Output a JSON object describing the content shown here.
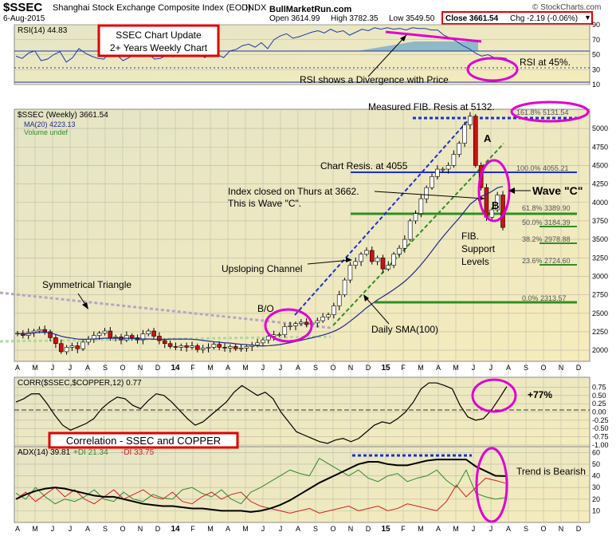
{
  "header": {
    "title": "$SSEC",
    "name": "Shanghai Stock Exchange Composite Index (EOD)",
    "exchange": "INDX",
    "watermark": "© StockCharts.com",
    "date": "6-Aug-2015",
    "site": "BullMarketRun.com",
    "open": "Open 3614.99",
    "high": "High 3782.35",
    "low": "Low 3549.50",
    "close": "Close 3661.54",
    "chg": "Chg -2.19 (-0.06%)"
  },
  "x_axis": {
    "labels": [
      "A",
      "M",
      "J",
      "J",
      "A",
      "S",
      "O",
      "N",
      "D",
      "14",
      "F",
      "M",
      "A",
      "M",
      "J",
      "J",
      "A",
      "S",
      "O",
      "N",
      "D",
      "15",
      "F",
      "M",
      "A",
      "M",
      "J",
      "J",
      "A",
      "S",
      "O",
      "N",
      "D"
    ]
  },
  "chart_data": [
    {
      "type": "line",
      "panel": "rsi",
      "legend": "RSI(14) 44.83",
      "yticks": [
        90,
        70,
        50,
        30,
        10
      ],
      "ylim": [
        10,
        90
      ],
      "levels": [
        70,
        50,
        30
      ],
      "values": [
        48,
        45,
        52,
        55,
        42,
        44,
        50,
        54,
        40,
        46,
        58,
        52,
        48,
        45,
        44,
        55,
        50,
        42,
        46,
        53,
        49,
        52,
        44,
        45,
        50,
        47,
        53,
        55,
        48,
        52,
        46,
        52,
        50,
        46,
        55,
        57,
        62,
        64,
        60,
        66,
        58,
        70,
        75,
        78,
        72,
        74,
        77,
        80,
        82,
        79,
        84,
        80,
        82,
        76,
        80,
        84,
        82,
        86,
        84,
        86,
        84,
        85,
        83,
        86,
        85,
        85,
        83,
        83,
        76,
        72,
        68,
        62,
        58,
        52,
        48,
        50,
        46,
        46,
        44.83
      ]
    },
    {
      "type": "candlestick",
      "panel": "price",
      "legend": [
        "$SSEC (Weekly) 3661.54",
        "MA(20) 4223.13",
        "Volume undef"
      ],
      "yticks": [
        5000,
        4750,
        4500,
        4250,
        4000,
        3750,
        3500,
        3250,
        3000,
        2750,
        2500,
        2250,
        2000
      ],
      "ylim": [
        1850,
        5260
      ],
      "closes": [
        2230,
        2200,
        2240,
        2260,
        2280,
        2250,
        2170,
        2090,
        1980,
        2040,
        2060,
        2020,
        2110,
        2150,
        2200,
        2230,
        2260,
        2170,
        2180,
        2140,
        2200,
        2170,
        2140,
        2220,
        2260,
        2190,
        2130,
        2090,
        2050,
        2040,
        2060,
        2040,
        2060,
        2010,
        2030,
        2040,
        2080,
        2040,
        2030,
        2050,
        2020,
        2030,
        2050,
        2070,
        2100,
        2140,
        2190,
        2210,
        2210,
        2320,
        2330,
        2360,
        2380,
        2350,
        2370,
        2400,
        2450,
        2480,
        2600,
        2750,
        2950,
        3150,
        3200,
        3300,
        3350,
        3200,
        3250,
        3100,
        3150,
        3300,
        3380,
        3500,
        3750,
        3850,
        4050,
        4200,
        4350,
        4450,
        4450,
        4500,
        4650,
        4800,
        5050,
        5166,
        4500,
        4200,
        3800,
        3900,
        4100,
        3661.54
      ]
    },
    {
      "type": "line",
      "panel": "corr",
      "legend": "CORR($SSEC,$COPPER,12) 0.77",
      "yticks": [
        0.75,
        0.5,
        0.25,
        0.0,
        -0.25,
        -0.5,
        -0.75,
        -1.0
      ],
      "ylim": [
        -1.05,
        1.05
      ],
      "values": [
        0.3,
        0.4,
        0.55,
        0.55,
        0.25,
        -0.1,
        -0.4,
        -0.55,
        -0.45,
        -0.35,
        -0.2,
        0.1,
        0.3,
        0.45,
        0.4,
        0.2,
        0.1,
        0.35,
        0.55,
        0.5,
        0.3,
        0.05,
        -0.2,
        -0.4,
        -0.3,
        -0.1,
        0.1,
        0.3,
        0.6,
        0.8,
        0.65,
        0.5,
        0.6,
        0.4,
        0.0,
        -0.3,
        -0.6,
        -0.7,
        -0.8,
        -0.9,
        -0.95,
        -0.85,
        -0.8,
        -0.9,
        -0.8,
        -0.6,
        -0.4,
        -0.3,
        -0.35,
        -0.2,
        0.0,
        0.3,
        0.7,
        0.88,
        0.88,
        0.8,
        0.7,
        0.2,
        -0.15,
        -0.25,
        -0.2,
        0.05,
        0.4,
        0.77
      ]
    },
    {
      "type": "line",
      "panel": "adx",
      "legend": [
        "ADX(14) 39.81",
        "+DI 21.34",
        "-DI 33.75"
      ],
      "yticks": [
        60,
        50,
        40,
        30,
        20,
        10
      ],
      "ylim": [
        0,
        65
      ],
      "series": [
        {
          "name": "ADX(14)",
          "color": "#000000",
          "values": [
            20,
            24,
            27,
            29,
            30,
            29,
            27,
            25,
            23,
            22,
            22,
            20,
            18,
            16,
            15,
            14,
            14,
            13,
            12,
            12,
            11,
            10,
            10,
            10,
            9,
            10,
            12,
            15,
            19,
            24,
            29,
            34,
            38,
            42,
            46,
            50,
            52,
            52,
            50,
            49,
            49,
            51,
            53,
            54,
            54,
            54,
            54,
            48,
            44,
            40,
            39.81
          ]
        },
        {
          "name": "+DI",
          "color": "#2d8a2d",
          "values": [
            25,
            20,
            30,
            22,
            16,
            20,
            18,
            22,
            28,
            20,
            18,
            26,
            20,
            18,
            24,
            21,
            20,
            28,
            30,
            25,
            22,
            28,
            20,
            16,
            26,
            30,
            35,
            40,
            45,
            42,
            40,
            55,
            50,
            45,
            40,
            45,
            38,
            35,
            40,
            42,
            35,
            38,
            40,
            45,
            36,
            30,
            45,
            25,
            22,
            20,
            21.34
          ]
        },
        {
          "name": "-DI",
          "color": "#cc2222",
          "values": [
            20,
            26,
            18,
            24,
            30,
            22,
            28,
            20,
            16,
            22,
            28,
            20,
            24,
            28,
            22,
            20,
            26,
            18,
            16,
            22,
            26,
            20,
            24,
            26,
            18,
            14,
            12,
            10,
            8,
            10,
            12,
            8,
            10,
            12,
            14,
            10,
            12,
            14,
            10,
            12,
            16,
            14,
            12,
            10,
            18,
            32,
            22,
            30,
            38,
            36,
            33.75
          ]
        }
      ]
    }
  ],
  "annotations": {
    "title_box": [
      "SSEC Chart Update",
      "2+ Years Weekly Chart"
    ],
    "rsi_divergence": "RSI shows a Divergence with Price",
    "rsi_level": "RSI at 45%.",
    "measured_fib": "Measured FIB. Resis at 5132.",
    "fib_1618": "161.8% 5131.54",
    "fib_100": "100.0% 4055.21",
    "fib_618": "61.8% 3389.90",
    "fib_50": "50.0% 3184.39",
    "fib_382": "38.2% 2978.88",
    "fib_236": "23.6% 2724.60",
    "fib_0": "0.0% 2313.57",
    "chart_resis": "Chart Resis. at 4055",
    "index_closed": [
      "Index closed on Thurs at 3662.",
      "This is Wave \"C\"."
    ],
    "wave_c": "Wave \"C\"",
    "label_a": "A",
    "label_b": "B",
    "fib_support": [
      "FIB.",
      "Support",
      "Levels"
    ],
    "upsloping": "Upsloping Channel",
    "symmetrical": "Symmetrical Triangle",
    "bo": "B/O",
    "daily_sma": "Daily SMA(100)",
    "corr_pct": "+77%",
    "corr_title": "Correlation - SSEC and COPPER",
    "trend": "Trend is Bearish"
  },
  "colors": {
    "up": "#ffffff",
    "down": "#cc1111",
    "ma": "#1f2a8c",
    "fib_green": "#2f8f22",
    "channel": "#1b2fd1",
    "magenta": "#e000d0",
    "box_red": "#e00000"
  }
}
